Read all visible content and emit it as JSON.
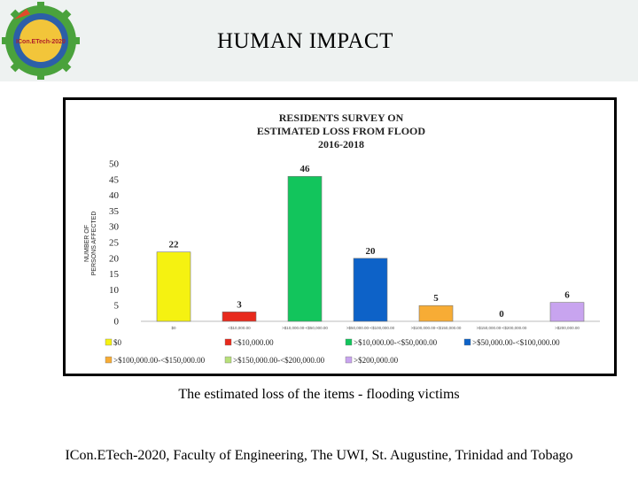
{
  "header": {
    "title": "HUMAN IMPACT",
    "logo_text": "ICon.ETech-2020"
  },
  "caption": "The estimated loss of the items - flooding victims",
  "footer": "ICon.ETech-2020, Faculty of Engineering, The UWI, St. Augustine, Trinidad and Tobago",
  "chart_data": {
    "type": "bar",
    "title_lines": [
      "RESIDENTS SURVEY ON",
      "ESTIMATED LOSS FROM FLOOD",
      "2016-2018"
    ],
    "ylabel_lines": [
      "NUMBER OF",
      "PERSONS AFFECTED"
    ],
    "xlabel": "",
    "ylim": [
      0,
      50
    ],
    "yticks": [
      0,
      5,
      10,
      15,
      20,
      25,
      30,
      35,
      40,
      45,
      50
    ],
    "categories": [
      "$0",
      "<$10,000.00",
      ">$10,000.00-<$50,000.00",
      ">$50,000.00-<$100,000.00",
      ">$100,000.00-<$150,000.00",
      ">$150,000.00-<$200,000.00",
      ">$200,000.00"
    ],
    "values": [
      22,
      3,
      46,
      20,
      5,
      0,
      6
    ],
    "colors": [
      "#f5f211",
      "#e8291c",
      "#12c55c",
      "#0d62c8",
      "#f7ac35",
      "#b7e07a",
      "#c8a4ef"
    ],
    "legend": {
      "position": "bottom",
      "entries": [
        "$0",
        "<$10,000.00",
        ">$10,000.00-<$50,000.00",
        ">$50,000.00-<$100,000.00",
        ">$100,000.00-<$150,000.00",
        ">$150,000.00-<$200,000.00",
        ">$200,000.00"
      ]
    }
  }
}
